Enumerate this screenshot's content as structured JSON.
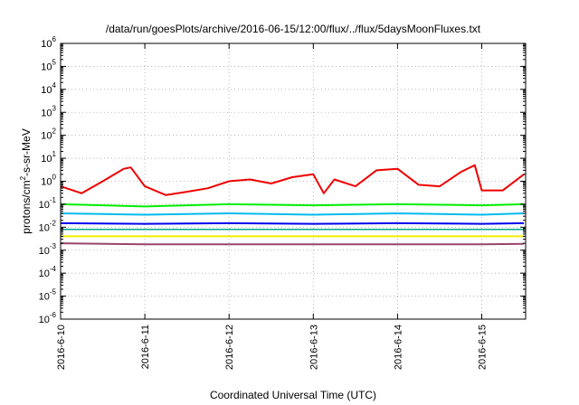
{
  "chart_data": {
    "type": "line",
    "title": "/data/run/goesPlots/archive/2016-06-15/12:00/flux/../flux/5daysMoonFluxes.txt",
    "xlabel": "Coordinated Universal Time (UTC)",
    "ylabel": {
      "pre": "protons/cm",
      "sup": "2",
      "post": "-s-sr-MeV"
    },
    "x_range": [
      "2016-06-10T00:00",
      "2016-06-15T12:30"
    ],
    "x_ticks": [
      "2016-6-10",
      "2016-6-11",
      "2016-6-12",
      "2016-6-13",
      "2016-6-14",
      "2016-6-15"
    ],
    "y_scale": "log",
    "ylim": [
      1e-06,
      1000000.0
    ],
    "y_ticks": [
      {
        "base": "10",
        "exp": "-6"
      },
      {
        "base": "10",
        "exp": "-5"
      },
      {
        "base": "10",
        "exp": "-4"
      },
      {
        "base": "10",
        "exp": "-3"
      },
      {
        "base": "10",
        "exp": "-2"
      },
      {
        "base": "10",
        "exp": "-1"
      },
      {
        "base": "10",
        "exp": "0"
      },
      {
        "base": "10",
        "exp": "1"
      },
      {
        "base": "10",
        "exp": "2"
      },
      {
        "base": "10",
        "exp": "3"
      },
      {
        "base": "10",
        "exp": "4"
      },
      {
        "base": "10",
        "exp": "5"
      },
      {
        "base": "10",
        "exp": "6"
      }
    ],
    "grid": true,
    "series": [
      {
        "color": "#ee0000",
        "width": 2,
        "x": [
          "2016-06-10T00:00",
          "2016-06-10T06:00",
          "2016-06-10T12:00",
          "2016-06-10T18:00",
          "2016-06-10T20:00",
          "2016-06-11T00:00",
          "2016-06-11T06:00",
          "2016-06-11T12:00",
          "2016-06-11T18:00",
          "2016-06-12T00:00",
          "2016-06-12T06:00",
          "2016-06-12T12:00",
          "2016-06-12T18:00",
          "2016-06-13T00:00",
          "2016-06-13T03:00",
          "2016-06-13T06:00",
          "2016-06-13T12:00",
          "2016-06-13T18:00",
          "2016-06-14T00:00",
          "2016-06-14T06:00",
          "2016-06-14T12:00",
          "2016-06-14T18:00",
          "2016-06-14T22:00",
          "2016-06-15T00:00",
          "2016-06-15T06:00",
          "2016-06-15T12:00"
        ],
        "y": [
          0.6,
          0.3,
          1.0,
          3.5,
          4.0,
          0.6,
          0.25,
          0.35,
          0.5,
          1.0,
          1.2,
          0.8,
          1.5,
          2.0,
          0.3,
          1.2,
          0.6,
          3.0,
          3.5,
          0.7,
          0.6,
          2.5,
          5.0,
          0.4,
          0.4,
          2.0
        ]
      },
      {
        "color": "#00ee00",
        "width": 2,
        "x": [
          "2016-06-10T00:00",
          "2016-06-11T00:00",
          "2016-06-12T00:00",
          "2016-06-13T00:00",
          "2016-06-14T00:00",
          "2016-06-15T00:00",
          "2016-06-15T12:00"
        ],
        "y": [
          0.1,
          0.08,
          0.1,
          0.09,
          0.1,
          0.09,
          0.1
        ]
      },
      {
        "color": "#00bbee",
        "width": 2,
        "x": [
          "2016-06-10T00:00",
          "2016-06-11T00:00",
          "2016-06-12T00:00",
          "2016-06-13T00:00",
          "2016-06-14T00:00",
          "2016-06-15T00:00",
          "2016-06-15T12:00"
        ],
        "y": [
          0.04,
          0.035,
          0.04,
          0.035,
          0.04,
          0.035,
          0.04
        ]
      },
      {
        "color": "#0000ee",
        "width": 2,
        "x": [
          "2016-06-10T00:00",
          "2016-06-11T00:00",
          "2016-06-12T00:00",
          "2016-06-13T00:00",
          "2016-06-14T00:00",
          "2016-06-15T00:00",
          "2016-06-15T12:00"
        ],
        "y": [
          0.015,
          0.014,
          0.015,
          0.014,
          0.015,
          0.014,
          0.015
        ]
      },
      {
        "color": "#00aa88",
        "width": 1.5,
        "x": [
          "2016-06-10T00:00",
          "2016-06-11T00:00",
          "2016-06-12T00:00",
          "2016-06-13T00:00",
          "2016-06-14T00:00",
          "2016-06-15T00:00",
          "2016-06-15T12:00"
        ],
        "y": [
          0.008,
          0.008,
          0.008,
          0.008,
          0.008,
          0.008,
          0.008
        ]
      },
      {
        "color": "#eeee00",
        "width": 2,
        "x": [
          "2016-06-10T00:00",
          "2016-06-11T00:00",
          "2016-06-12T00:00",
          "2016-06-13T00:00",
          "2016-06-14T00:00",
          "2016-06-15T00:00",
          "2016-06-15T12:00"
        ],
        "y": [
          0.004,
          0.004,
          0.004,
          0.004,
          0.004,
          0.004,
          0.004
        ]
      },
      {
        "color": "#994466",
        "width": 2,
        "x": [
          "2016-06-10T00:00",
          "2016-06-11T00:00",
          "2016-06-12T00:00",
          "2016-06-13T00:00",
          "2016-06-14T00:00",
          "2016-06-15T00:00",
          "2016-06-15T12:00"
        ],
        "y": [
          0.002,
          0.0018,
          0.0018,
          0.0018,
          0.0018,
          0.0018,
          0.0019
        ]
      }
    ]
  }
}
